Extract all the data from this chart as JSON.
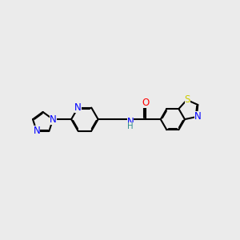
{
  "bg_color": "#ebebeb",
  "bond_color": "#000000",
  "bond_lw": 1.5,
  "dbo": 0.055,
  "atom_colors": {
    "N": "#0000ff",
    "S": "#cccc00",
    "O": "#ff0000",
    "H": "#2e8b8b",
    "C": "#000000"
  },
  "fs": 8.5,
  "figsize": [
    3.0,
    3.0
  ],
  "dpi": 100,
  "xlim": [
    -9.5,
    7.5
  ],
  "ylim": [
    -4.0,
    4.5
  ]
}
